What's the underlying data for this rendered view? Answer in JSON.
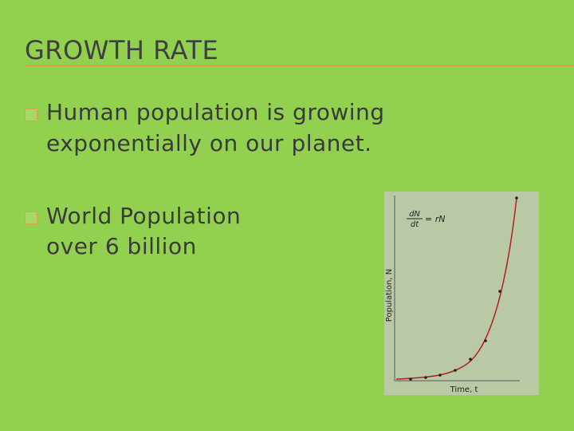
{
  "slide": {
    "title": "GROWTH RATE",
    "bullets": [
      {
        "lines": [
          "Human population is growing",
          "exponentially on our planet."
        ]
      },
      {
        "lines": [
          "World Population",
          "over 6 billion"
        ]
      }
    ],
    "figure": {
      "equation_numerator": "dN",
      "equation_denominator": "dt",
      "equation_rhs": "= rN",
      "y_label": "Population, N",
      "x_label": "Time, t"
    }
  }
}
